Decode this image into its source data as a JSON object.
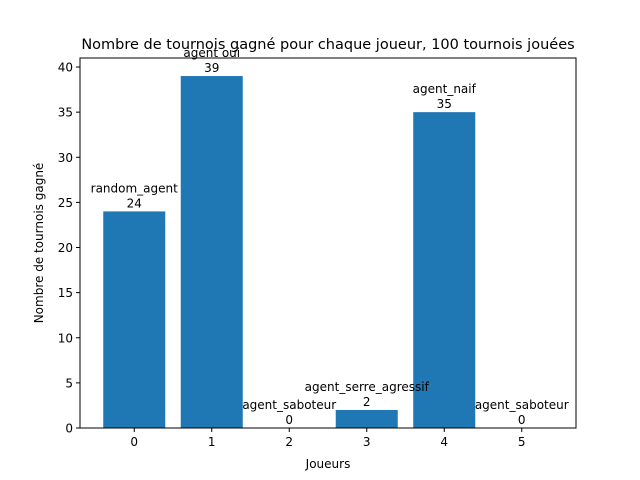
{
  "chart_data": {
    "type": "bar",
    "title": "Nombre de tournois gagné pour chaque joueur, 100 tournois jouées",
    "xlabel": "Joueurs",
    "ylabel": "Nombre de tournois gagné",
    "categories": [
      "0",
      "1",
      "2",
      "3",
      "4",
      "5"
    ],
    "values": [
      24,
      39,
      0,
      2,
      35,
      0
    ],
    "bar_labels": [
      "random_agent",
      "agent oui",
      "agent_saboteur",
      "agent_serre_agressif",
      "agent_naif",
      "agent_saboteur"
    ],
    "ylim": [
      0,
      41
    ],
    "xlim": [
      -0.7,
      5.7
    ],
    "yticks": [
      0,
      5,
      10,
      15,
      20,
      25,
      30,
      35,
      40
    ],
    "grid": false,
    "bar_color": "#1f77b4"
  }
}
